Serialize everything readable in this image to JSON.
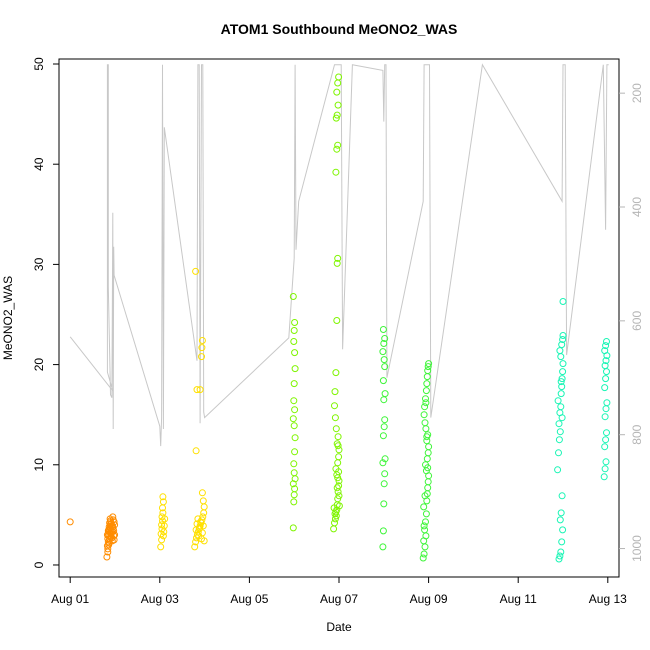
{
  "chart_data": {
    "type": "scatter",
    "title": "ATOM1 Southbound MeONO2_WAS",
    "xlabel": "Date",
    "ylabel": "MeONO2_WAS",
    "x_unit": "day of August",
    "xlim": [
      0.75,
      13.25
    ],
    "ylim": [
      -1.2,
      50.5
    ],
    "x_ticks": [
      1,
      3,
      5,
      7,
      9,
      11,
      13
    ],
    "x_tick_labels": [
      "Aug 01",
      "Aug 03",
      "Aug 05",
      "Aug 07",
      "Aug 09",
      "Aug 11",
      "Aug 13"
    ],
    "y_ticks": [
      0,
      10,
      20,
      30,
      40,
      50
    ],
    "y_tick_labels": [
      "0",
      "10",
      "20",
      "30",
      "40",
      "50"
    ],
    "right_axis": {
      "reversed": true,
      "color": "#b5b5b5",
      "lim": [
        1050,
        140
      ],
      "ticks": [
        200,
        400,
        600,
        800,
        1000
      ],
      "tick_labels": [
        "200",
        "400",
        "600",
        "800",
        "1000"
      ]
    },
    "grid": false,
    "legend": "none",
    "series": [
      {
        "color": "#ff8c00",
        "points": [
          [
            1.0,
            4.3
          ],
          [
            1.82,
            0.8
          ],
          [
            1.84,
            1.3
          ],
          [
            1.83,
            1.9
          ],
          [
            1.85,
            2.3
          ],
          [
            1.84,
            2.6
          ],
          [
            1.86,
            2.9
          ],
          [
            1.85,
            3.1
          ],
          [
            1.87,
            3.3
          ],
          [
            1.86,
            3.5
          ],
          [
            1.88,
            3.6
          ],
          [
            1.87,
            3.8
          ],
          [
            1.89,
            4.0
          ],
          [
            1.88,
            4.2
          ],
          [
            1.9,
            4.4
          ],
          [
            1.89,
            4.6
          ],
          [
            1.91,
            2.8
          ],
          [
            1.92,
            3.2
          ],
          [
            1.93,
            3.9
          ],
          [
            1.94,
            2.4
          ],
          [
            1.95,
            4.8
          ],
          [
            1.83,
            3.0
          ],
          [
            1.85,
            3.4
          ],
          [
            1.87,
            2.2
          ],
          [
            1.9,
            3.7
          ],
          [
            1.92,
            4.1
          ],
          [
            1.94,
            3.3
          ],
          [
            1.96,
            3.6
          ],
          [
            1.97,
            2.9
          ],
          [
            1.98,
            4.3
          ],
          [
            1.99,
            3.0
          ],
          [
            1.84,
            1.6
          ],
          [
            1.86,
            2.0
          ],
          [
            1.88,
            2.6
          ],
          [
            1.91,
            3.1
          ],
          [
            1.93,
            2.7
          ],
          [
            1.95,
            3.8
          ],
          [
            1.96,
            4.5
          ],
          [
            1.97,
            3.4
          ],
          [
            1.98,
            2.5
          ],
          [
            1.99,
            4.0
          ]
        ]
      },
      {
        "color": "#ffe000",
        "points": [
          [
            3.02,
            1.8
          ],
          [
            3.04,
            2.5
          ],
          [
            3.03,
            3.1
          ],
          [
            3.05,
            3.6
          ],
          [
            3.04,
            4.0
          ],
          [
            3.06,
            4.4
          ],
          [
            3.05,
            4.8
          ],
          [
            3.07,
            5.2
          ],
          [
            3.06,
            5.7
          ],
          [
            3.08,
            6.3
          ],
          [
            3.07,
            6.8
          ],
          [
            3.09,
            3.3
          ],
          [
            3.1,
            3.9
          ],
          [
            3.08,
            2.9
          ],
          [
            3.11,
            4.6
          ],
          [
            3.8,
            29.3
          ],
          [
            3.81,
            11.4
          ],
          [
            3.83,
            17.5
          ],
          [
            3.9,
            17.5
          ],
          [
            3.93,
            20.8
          ],
          [
            3.94,
            21.7
          ],
          [
            3.95,
            22.4
          ],
          [
            3.78,
            1.8
          ],
          [
            3.8,
            2.3
          ],
          [
            3.82,
            2.7
          ],
          [
            3.84,
            3.0
          ],
          [
            3.86,
            3.3
          ],
          [
            3.88,
            3.6
          ],
          [
            3.9,
            3.9
          ],
          [
            3.92,
            4.2
          ],
          [
            3.94,
            4.5
          ],
          [
            3.96,
            4.8
          ],
          [
            3.98,
            5.2
          ],
          [
            3.99,
            5.8
          ],
          [
            3.97,
            6.4
          ],
          [
            3.95,
            7.2
          ],
          [
            3.81,
            3.5
          ],
          [
            3.83,
            4.1
          ],
          [
            3.85,
            4.6
          ],
          [
            3.87,
            2.9
          ],
          [
            3.89,
            3.7
          ],
          [
            3.91,
            4.3
          ],
          [
            3.93,
            2.6
          ],
          [
            3.95,
            3.2
          ],
          [
            3.97,
            3.9
          ],
          [
            3.99,
            2.4
          ]
        ]
      },
      {
        "color": "#7ff500",
        "points": [
          [
            5.98,
            3.7
          ],
          [
            5.99,
            6.3
          ],
          [
            6.0,
            7.0
          ],
          [
            6.01,
            7.6
          ],
          [
            5.98,
            8.1
          ],
          [
            6.02,
            8.6
          ],
          [
            6.0,
            9.2
          ],
          [
            5.99,
            10.1
          ],
          [
            6.01,
            11.3
          ],
          [
            6.02,
            12.7
          ],
          [
            6.0,
            13.9
          ],
          [
            5.98,
            14.6
          ],
          [
            6.01,
            15.5
          ],
          [
            5.99,
            16.4
          ],
          [
            6.0,
            18.1
          ],
          [
            6.02,
            19.6
          ],
          [
            6.01,
            21.2
          ],
          [
            5.99,
            22.3
          ],
          [
            6.0,
            23.4
          ],
          [
            6.01,
            24.2
          ],
          [
            5.98,
            26.8
          ],
          [
            6.88,
            3.6
          ],
          [
            6.9,
            4.2
          ],
          [
            6.92,
            4.6
          ],
          [
            6.94,
            4.9
          ],
          [
            6.91,
            5.1
          ],
          [
            6.93,
            5.3
          ],
          [
            6.95,
            5.5
          ],
          [
            6.89,
            5.7
          ],
          [
            6.96,
            6.0
          ],
          [
            6.97,
            6.6
          ],
          [
            6.98,
            7.3
          ],
          [
            6.99,
            7.9
          ],
          [
            7.0,
            8.4
          ],
          [
            6.95,
            9.0
          ],
          [
            6.93,
            9.6
          ],
          [
            6.97,
            10.2
          ],
          [
            6.99,
            10.8
          ],
          [
            7.0,
            11.5
          ],
          [
            6.96,
            12.1
          ],
          [
            6.98,
            12.8
          ],
          [
            6.94,
            13.6
          ],
          [
            6.92,
            14.7
          ],
          [
            6.9,
            15.9
          ],
          [
            6.91,
            17.3
          ],
          [
            6.93,
            19.2
          ],
          [
            6.95,
            24.4
          ],
          [
            6.96,
            30.1
          ],
          [
            6.97,
            30.6
          ],
          [
            6.93,
            39.2
          ],
          [
            6.95,
            41.5
          ],
          [
            6.97,
            41.9
          ],
          [
            6.94,
            44.6
          ],
          [
            6.96,
            44.9
          ],
          [
            6.98,
            45.9
          ],
          [
            6.95,
            47.2
          ],
          [
            6.97,
            48.1
          ],
          [
            6.99,
            48.7
          ],
          [
            7.0,
            6.9
          ],
          [
            6.99,
            9.3
          ],
          [
            6.98,
            11.9
          ],
          [
            6.97,
            8.7
          ],
          [
            6.96,
            7.7
          ],
          [
            7.01,
            5.9
          ]
        ]
      },
      {
        "color": "#3ff53a",
        "points": [
          [
            7.98,
            1.8
          ],
          [
            7.99,
            3.4
          ],
          [
            8.0,
            6.1
          ],
          [
            8.01,
            8.1
          ],
          [
            8.02,
            9.1
          ],
          [
            7.98,
            10.2
          ],
          [
            8.03,
            10.6
          ],
          [
            7.99,
            12.9
          ],
          [
            8.01,
            13.8
          ],
          [
            8.02,
            14.5
          ],
          [
            8.0,
            16.5
          ],
          [
            8.03,
            17.1
          ],
          [
            7.99,
            18.4
          ],
          [
            8.02,
            19.8
          ],
          [
            8.01,
            20.5
          ],
          [
            7.98,
            21.3
          ],
          [
            8.0,
            22.1
          ],
          [
            8.02,
            22.6
          ],
          [
            7.99,
            23.5
          ],
          [
            8.88,
            0.7
          ],
          [
            8.9,
            1.1
          ],
          [
            8.92,
            1.8
          ],
          [
            8.94,
            2.9
          ],
          [
            8.91,
            3.5
          ],
          [
            8.93,
            4.3
          ],
          [
            8.95,
            5.1
          ],
          [
            8.89,
            5.8
          ],
          [
            8.96,
            6.4
          ],
          [
            8.97,
            7.1
          ],
          [
            8.98,
            7.7
          ],
          [
            8.99,
            8.3
          ],
          [
            9.0,
            8.9
          ],
          [
            8.95,
            9.4
          ],
          [
            8.93,
            10.0
          ],
          [
            8.97,
            10.6
          ],
          [
            8.99,
            11.2
          ],
          [
            9.0,
            11.8
          ],
          [
            8.96,
            12.4
          ],
          [
            8.98,
            13.0
          ],
          [
            8.94,
            13.6
          ],
          [
            8.92,
            14.2
          ],
          [
            8.9,
            15.0
          ],
          [
            8.91,
            15.8
          ],
          [
            8.93,
            16.6
          ],
          [
            8.95,
            17.4
          ],
          [
            8.96,
            18.1
          ],
          [
            8.97,
            18.8
          ],
          [
            8.98,
            19.4
          ],
          [
            8.99,
            19.8
          ],
          [
            9.0,
            20.1
          ],
          [
            8.94,
            16.2
          ],
          [
            8.96,
            12.8
          ],
          [
            8.98,
            9.7
          ],
          [
            8.92,
            6.9
          ],
          [
            8.9,
            3.9
          ],
          [
            8.89,
            2.4
          ]
        ]
      },
      {
        "color": "#19f5b5",
        "points": [
          [
            11.88,
            9.5
          ],
          [
            11.9,
            11.2
          ],
          [
            11.92,
            12.5
          ],
          [
            11.94,
            13.3
          ],
          [
            11.91,
            14.1
          ],
          [
            11.93,
            15.2
          ],
          [
            11.95,
            15.8
          ],
          [
            11.89,
            16.4
          ],
          [
            11.96,
            17.1
          ],
          [
            11.97,
            17.8
          ],
          [
            11.98,
            18.6
          ],
          [
            11.99,
            19.3
          ],
          [
            12.0,
            20.1
          ],
          [
            11.95,
            20.8
          ],
          [
            11.93,
            21.4
          ],
          [
            11.97,
            22.0
          ],
          [
            11.99,
            22.5
          ],
          [
            12.0,
            22.9
          ],
          [
            11.96,
            18.3
          ],
          [
            11.98,
            14.7
          ],
          [
            12.0,
            26.3
          ],
          [
            11.91,
            0.6
          ],
          [
            11.93,
            0.9
          ],
          [
            11.95,
            1.3
          ],
          [
            11.97,
            2.3
          ],
          [
            11.99,
            3.5
          ],
          [
            11.94,
            4.5
          ],
          [
            11.96,
            5.2
          ],
          [
            11.98,
            6.9
          ],
          [
            12.92,
            8.8
          ],
          [
            12.94,
            9.6
          ],
          [
            12.96,
            10.3
          ],
          [
            12.93,
            11.8
          ],
          [
            12.95,
            12.5
          ],
          [
            12.97,
            13.2
          ],
          [
            12.94,
            14.8
          ],
          [
            12.96,
            15.6
          ],
          [
            12.98,
            16.2
          ],
          [
            12.93,
            17.7
          ],
          [
            12.95,
            18.6
          ],
          [
            12.97,
            19.3
          ],
          [
            12.94,
            19.9
          ],
          [
            12.96,
            20.4
          ],
          [
            12.98,
            20.9
          ],
          [
            12.93,
            21.4
          ],
          [
            12.95,
            21.9
          ],
          [
            12.97,
            22.3
          ]
        ]
      }
    ],
    "altitude_series": {
      "axis": "right",
      "color": "#c8c8c8",
      "points": [
        [
          1.0,
          628
        ],
        [
          1.95,
          723
        ],
        [
          1.83,
          690
        ],
        [
          1.83,
          150
        ],
        [
          1.85,
          150
        ],
        [
          1.85,
          540
        ],
        [
          1.9,
          730
        ],
        [
          1.93,
          735
        ],
        [
          1.95,
          410
        ],
        [
          1.96,
          790
        ],
        [
          1.97,
          470
        ],
        [
          1.98,
          520
        ],
        [
          3.0,
          785
        ],
        [
          3.02,
          820
        ],
        [
          3.04,
          770
        ],
        [
          3.06,
          150
        ],
        [
          3.08,
          790
        ],
        [
          3.1,
          260
        ],
        [
          3.83,
          670
        ],
        [
          3.85,
          150
        ],
        [
          3.88,
          150
        ],
        [
          3.9,
          780
        ],
        [
          3.93,
          150
        ],
        [
          3.96,
          150
        ],
        [
          3.98,
          760
        ],
        [
          4.0,
          770
        ],
        [
          5.88,
          630
        ],
        [
          6.0,
          490
        ],
        [
          6.02,
          150
        ],
        [
          6.04,
          475
        ],
        [
          6.1,
          390
        ],
        [
          6.3,
          330
        ],
        [
          6.9,
          150
        ],
        [
          6.92,
          150
        ],
        [
          6.95,
          150
        ],
        [
          7.0,
          150
        ],
        [
          7.02,
          150
        ],
        [
          7.05,
          150
        ],
        [
          7.08,
          650
        ],
        [
          7.3,
          150
        ],
        [
          7.98,
          160
        ],
        [
          8.0,
          250
        ],
        [
          8.02,
          150
        ],
        [
          8.05,
          150
        ],
        [
          8.07,
          700
        ],
        [
          8.88,
          390
        ],
        [
          8.9,
          150
        ],
        [
          8.93,
          150
        ],
        [
          8.96,
          150
        ],
        [
          9.0,
          150
        ],
        [
          9.02,
          150
        ],
        [
          9.05,
          770
        ],
        [
          10.2,
          150
        ],
        [
          11.98,
          390
        ],
        [
          12.0,
          150
        ],
        [
          12.02,
          150
        ],
        [
          12.05,
          150
        ],
        [
          12.08,
          660
        ],
        [
          12.9,
          150
        ],
        [
          12.95,
          440
        ],
        [
          12.98,
          150
        ],
        [
          13.0,
          150
        ],
        [
          13.02,
          150
        ]
      ]
    }
  }
}
